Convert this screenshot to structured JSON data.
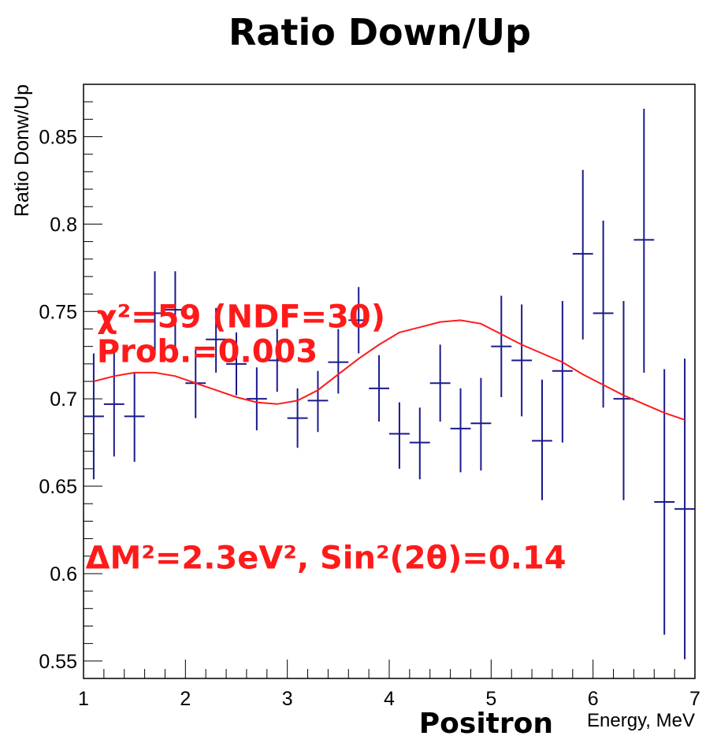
{
  "chart_data": {
    "type": "scatter",
    "title": "Ratio Down/Up",
    "ylabel": "Ratio Donw/Up",
    "xlabel_prefix": "Positron",
    "xlabel": "Energy, MeV",
    "xlim": [
      1,
      7
    ],
    "ylim": [
      0.54,
      0.88
    ],
    "x_ticks": [
      1,
      2,
      3,
      4,
      5,
      6,
      7
    ],
    "x_tick_labels": [
      "1",
      "2",
      "3",
      "4",
      "5",
      "6",
      "7"
    ],
    "y_ticks": [
      0.55,
      0.6,
      0.65,
      0.7,
      0.75,
      0.8,
      0.85
    ],
    "y_tick_labels": [
      "0.55",
      "0.6",
      "0.65",
      "0.7",
      "0.75",
      "0.8",
      "0.85"
    ],
    "grid": false,
    "annotations": [
      {
        "text": "χ²=59 (NDF=30)",
        "x": 1.13,
        "y": 0.741
      },
      {
        "text": "Prob.=0.003",
        "x": 1.13,
        "y": 0.721
      },
      {
        "text": "ΔM²=2.3eV², Sin²(2θ)=0.14",
        "x": 1.02,
        "y": 0.603
      }
    ],
    "series": [
      {
        "kind": "points",
        "color": "#1a1a8c",
        "x_halfwidth": 0.1,
        "points": [
          {
            "x": 1.1,
            "y": 0.69,
            "ylo": 0.654,
            "yhi": 0.726
          },
          {
            "x": 1.3,
            "y": 0.697,
            "ylo": 0.667,
            "yhi": 0.728
          },
          {
            "x": 1.5,
            "y": 0.69,
            "ylo": 0.664,
            "yhi": 0.715
          },
          {
            "x": 1.7,
            "y": 0.749,
            "ylo": 0.726,
            "yhi": 0.773
          },
          {
            "x": 1.9,
            "y": 0.751,
            "ylo": 0.729,
            "yhi": 0.773
          },
          {
            "x": 2.1,
            "y": 0.709,
            "ylo": 0.689,
            "yhi": 0.728
          },
          {
            "x": 2.3,
            "y": 0.734,
            "ylo": 0.715,
            "yhi": 0.752
          },
          {
            "x": 2.5,
            "y": 0.72,
            "ylo": 0.702,
            "yhi": 0.738
          },
          {
            "x": 2.7,
            "y": 0.7,
            "ylo": 0.682,
            "yhi": 0.718
          },
          {
            "x": 2.9,
            "y": 0.722,
            "ylo": 0.704,
            "yhi": 0.74
          },
          {
            "x": 3.1,
            "y": 0.689,
            "ylo": 0.672,
            "yhi": 0.706
          },
          {
            "x": 3.3,
            "y": 0.699,
            "ylo": 0.681,
            "yhi": 0.716
          },
          {
            "x": 3.5,
            "y": 0.721,
            "ylo": 0.703,
            "yhi": 0.74
          },
          {
            "x": 3.7,
            "y": 0.745,
            "ylo": 0.726,
            "yhi": 0.764
          },
          {
            "x": 3.9,
            "y": 0.706,
            "ylo": 0.687,
            "yhi": 0.725
          },
          {
            "x": 4.1,
            "y": 0.68,
            "ylo": 0.66,
            "yhi": 0.698
          },
          {
            "x": 4.3,
            "y": 0.675,
            "ylo": 0.654,
            "yhi": 0.695
          },
          {
            "x": 4.5,
            "y": 0.709,
            "ylo": 0.687,
            "yhi": 0.731
          },
          {
            "x": 4.7,
            "y": 0.683,
            "ylo": 0.658,
            "yhi": 0.706
          },
          {
            "x": 4.9,
            "y": 0.686,
            "ylo": 0.659,
            "yhi": 0.712
          },
          {
            "x": 5.1,
            "y": 0.73,
            "ylo": 0.701,
            "yhi": 0.759
          },
          {
            "x": 5.3,
            "y": 0.722,
            "ylo": 0.69,
            "yhi": 0.754
          },
          {
            "x": 5.5,
            "y": 0.676,
            "ylo": 0.642,
            "yhi": 0.711
          },
          {
            "x": 5.7,
            "y": 0.716,
            "ylo": 0.675,
            "yhi": 0.756
          },
          {
            "x": 5.9,
            "y": 0.783,
            "ylo": 0.734,
            "yhi": 0.831
          },
          {
            "x": 6.1,
            "y": 0.749,
            "ylo": 0.695,
            "yhi": 0.802
          },
          {
            "x": 6.3,
            "y": 0.7,
            "ylo": 0.642,
            "yhi": 0.756
          },
          {
            "x": 6.5,
            "y": 0.791,
            "ylo": 0.715,
            "yhi": 0.866
          },
          {
            "x": 6.7,
            "y": 0.641,
            "ylo": 0.565,
            "yhi": 0.717
          },
          {
            "x": 6.9,
            "y": 0.637,
            "ylo": 0.551,
            "yhi": 0.723
          }
        ]
      },
      {
        "kind": "curve",
        "color": "#ff1a1a",
        "x": [
          1.1,
          1.3,
          1.5,
          1.7,
          1.9,
          2.1,
          2.3,
          2.5,
          2.7,
          2.9,
          3.1,
          3.3,
          3.5,
          3.7,
          3.9,
          4.1,
          4.3,
          4.5,
          4.7,
          4.9,
          5.1,
          5.3,
          5.5,
          5.7,
          5.9,
          6.1,
          6.3,
          6.5,
          6.7,
          6.9
        ],
        "y": [
          0.71,
          0.713,
          0.715,
          0.715,
          0.713,
          0.709,
          0.705,
          0.701,
          0.698,
          0.697,
          0.699,
          0.705,
          0.714,
          0.723,
          0.731,
          0.738,
          0.741,
          0.744,
          0.745,
          0.743,
          0.737,
          0.731,
          0.726,
          0.721,
          0.714,
          0.708,
          0.702,
          0.697,
          0.692,
          0.688
        ]
      }
    ]
  }
}
